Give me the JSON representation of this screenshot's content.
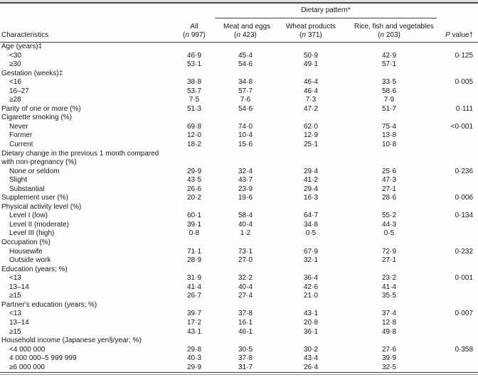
{
  "table": {
    "span_header": "Dietary pattern*",
    "columns": [
      {
        "label": "Characteristics"
      },
      {
        "label": "All",
        "sub_pre": "(",
        "sub_it": "n",
        "sub_post": " 997)"
      },
      {
        "label": "Meat and eggs",
        "sub_pre": "(",
        "sub_it": "n",
        "sub_post": " 423)"
      },
      {
        "label": "Wheat products",
        "sub_pre": "(",
        "sub_it": "n",
        "sub_post": " 371)"
      },
      {
        "label": "Rice, fish and vegetables",
        "sub_pre": "(",
        "sub_it": "n",
        "sub_post": " 203)"
      },
      {
        "label_it": "P",
        "label_rest": " value†"
      }
    ],
    "rows": [
      {
        "label": "Age (years)‡",
        "indent": 0,
        "values": [
          "",
          "",
          "",
          ""
        ],
        "p": ""
      },
      {
        "label": "<30",
        "indent": 1,
        "values": [
          "46·9",
          "45·4",
          "50·9",
          "42·9"
        ],
        "p": "0·125"
      },
      {
        "label": "≥30",
        "indent": 1,
        "values": [
          "53·1",
          "54·6",
          "49·1",
          "57·1"
        ],
        "p": ""
      },
      {
        "label": "Gestation (weeks)‡",
        "indent": 0,
        "values": [
          "",
          "",
          "",
          ""
        ],
        "p": ""
      },
      {
        "label": "<16",
        "indent": 1,
        "values": [
          "38·8",
          "34·8",
          "46·4",
          "33·5"
        ],
        "p": "0·005"
      },
      {
        "label": "16–27",
        "indent": 1,
        "values": [
          "53·7",
          "57·7",
          "46·4",
          "58·6"
        ],
        "p": ""
      },
      {
        "label": "≥28",
        "indent": 1,
        "values": [
          "7·5",
          "7·6",
          "7·3",
          "7·9"
        ],
        "p": ""
      },
      {
        "label": "Parity of one or more (%)",
        "indent": 0,
        "values": [
          "51·3",
          "54·6",
          "47·2",
          "51·7"
        ],
        "p": "0·111"
      },
      {
        "label": "Cigarette smoking (%)",
        "indent": 0,
        "values": [
          "",
          "",
          "",
          ""
        ],
        "p": ""
      },
      {
        "label": "Never",
        "indent": 1,
        "values": [
          "69·8",
          "74·0",
          "62·0",
          "75·4"
        ],
        "p": "<0·001"
      },
      {
        "label": "Former",
        "indent": 1,
        "values": [
          "12·0",
          "10·4",
          "12·9",
          "13·8"
        ],
        "p": ""
      },
      {
        "label": "Current",
        "indent": 1,
        "values": [
          "18·2",
          "15·6",
          "25·1",
          "10·8"
        ],
        "p": ""
      },
      {
        "label": "Dietary change in the previous 1 month compared",
        "indent": 0,
        "values": [
          "",
          "",
          "",
          ""
        ],
        "p": ""
      },
      {
        "label": "with non-pregnancy (%)",
        "indent": 0,
        "values": [
          "",
          "",
          "",
          ""
        ],
        "p": ""
      },
      {
        "label": "None or seldom",
        "indent": 1,
        "values": [
          "29·9",
          "32·4",
          "29·4",
          "25·6"
        ],
        "p": "0·236"
      },
      {
        "label": "Slight",
        "indent": 1,
        "values": [
          "43·5",
          "43·7",
          "41·2",
          "47·3"
        ],
        "p": ""
      },
      {
        "label": "Substantial",
        "indent": 1,
        "values": [
          "26·6",
          "23·9",
          "29·4",
          "27·1"
        ],
        "p": ""
      },
      {
        "label": "Supplement user (%)",
        "indent": 0,
        "values": [
          "20·2",
          "19·6",
          "16·3",
          "28·6"
        ],
        "p": "0·006"
      },
      {
        "label": "Physical activity level (%)",
        "indent": 0,
        "values": [
          "",
          "",
          "",
          ""
        ],
        "p": ""
      },
      {
        "label": "Level I (low)",
        "indent": 1,
        "values": [
          "60·1",
          "58·4",
          "64·7",
          "55·2"
        ],
        "p": "0·134"
      },
      {
        "label": "Level II (moderate)",
        "indent": 1,
        "values": [
          "39·1",
          "40·4",
          "34·8",
          "44·3"
        ],
        "p": ""
      },
      {
        "label": "Level III (high)",
        "indent": 1,
        "values": [
          "0·8",
          "1·2",
          "0·5",
          "0·5"
        ],
        "p": ""
      },
      {
        "label": "Occupation (%)",
        "indent": 0,
        "values": [
          "",
          "",
          "",
          ""
        ],
        "p": ""
      },
      {
        "label": "Housewife",
        "indent": 1,
        "values": [
          "71·1",
          "73·1",
          "67·9",
          "72·9"
        ],
        "p": "0·232"
      },
      {
        "label": "Outside work",
        "indent": 1,
        "values": [
          "28·9",
          "27·0",
          "32·1",
          "27·1"
        ],
        "p": ""
      },
      {
        "label": "Education (years; %)",
        "indent": 0,
        "values": [
          "",
          "",
          "",
          ""
        ],
        "p": ""
      },
      {
        "label": "<13",
        "indent": 1,
        "values": [
          "31·9",
          "32·2",
          "36·4",
          "23·2"
        ],
        "p": "0·001"
      },
      {
        "label": "13–14",
        "indent": 1,
        "values": [
          "41·4",
          "40·4",
          "42·6",
          "41·4"
        ],
        "p": ""
      },
      {
        "label": "≥15",
        "indent": 1,
        "values": [
          "26·7",
          "27·4",
          "21·0",
          "35·5"
        ],
        "p": ""
      },
      {
        "label": "Partner's education (years; %)",
        "indent": 0,
        "values": [
          "",
          "",
          "",
          ""
        ],
        "p": ""
      },
      {
        "label": "<13",
        "indent": 1,
        "values": [
          "39·7",
          "37·8",
          "43·1",
          "37·4"
        ],
        "p": "0·007"
      },
      {
        "label": "13–14",
        "indent": 1,
        "values": [
          "17·2",
          "16·1",
          "20·8",
          "12·8"
        ],
        "p": ""
      },
      {
        "label": "≥15",
        "indent": 1,
        "values": [
          "43·1",
          "46·1",
          "36·1",
          "49·8"
        ],
        "p": ""
      },
      {
        "label": "Household income (Japanese yen§/year; %)",
        "indent": 0,
        "values": [
          "",
          "",
          "",
          ""
        ],
        "p": ""
      },
      {
        "label": "<4 000 000",
        "indent": 1,
        "values": [
          "29·8",
          "30·5",
          "30·2",
          "27·6"
        ],
        "p": "0·358"
      },
      {
        "label": "4 000 000–5 999 999",
        "indent": 1,
        "values": [
          "40·3",
          "37·8",
          "43·4",
          "39·9"
        ],
        "p": ""
      },
      {
        "label": "≥6 000 000",
        "indent": 1,
        "values": [
          "29·9",
          "31·7",
          "26·4",
          "32·5"
        ],
        "p": ""
      }
    ]
  }
}
